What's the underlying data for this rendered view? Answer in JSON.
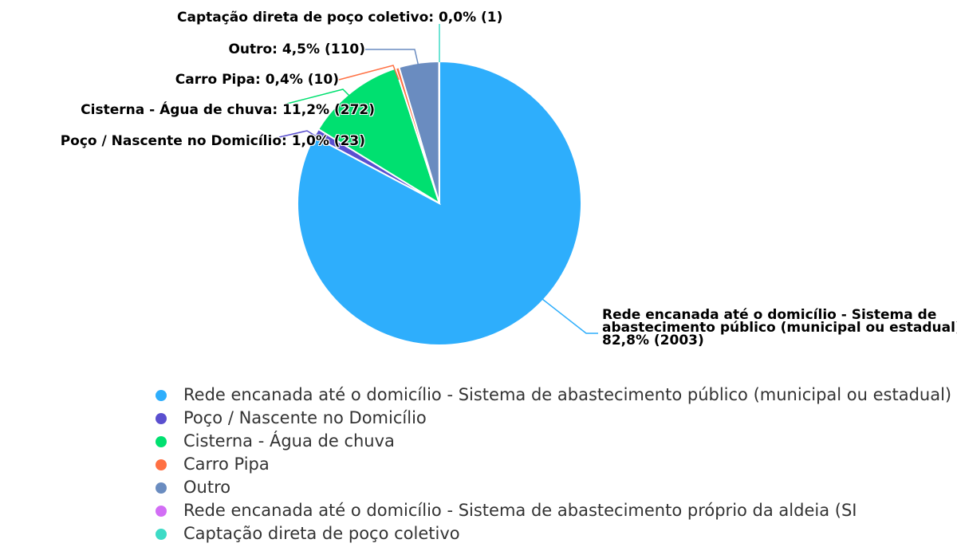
{
  "chart_data": {
    "type": "pie",
    "categories": [
      "Rede encanada até o domicílio - Sistema de abastecimento público (municipal ou estadual)",
      "Poço / Nascente no Domicílio",
      "Cisterna - Água de chuva",
      "Carro Pipa",
      "Outro",
      "Rede encanada até o domicílio - Sistema de abastecimento próprio da aldeia (SI",
      "Captação direta de poço coletivo"
    ],
    "values": [
      2003,
      23,
      272,
      10,
      110,
      0,
      1
    ],
    "value_labels": [
      "Rede encanada até o domicílio - Sistema de abastecimento público (municipal ou estadual): 82,8% (2003)",
      "Poço / Nascente no Domicílio: 1,0% (23)",
      "Cisterna - Água de chuva: 11,2% (272)",
      "Carro Pipa: 0,4% (10)",
      "Outro: 4,5% (110)",
      null,
      "Captação direta de poço coletivo: 0,0% (1)"
    ],
    "colors": [
      "#2eaefc",
      "#5a4fcf",
      "#00e070",
      "#ff7043",
      "#6a8cc0",
      "#d26ef5",
      "#3ddbc6"
    ],
    "legend": "bottom"
  }
}
